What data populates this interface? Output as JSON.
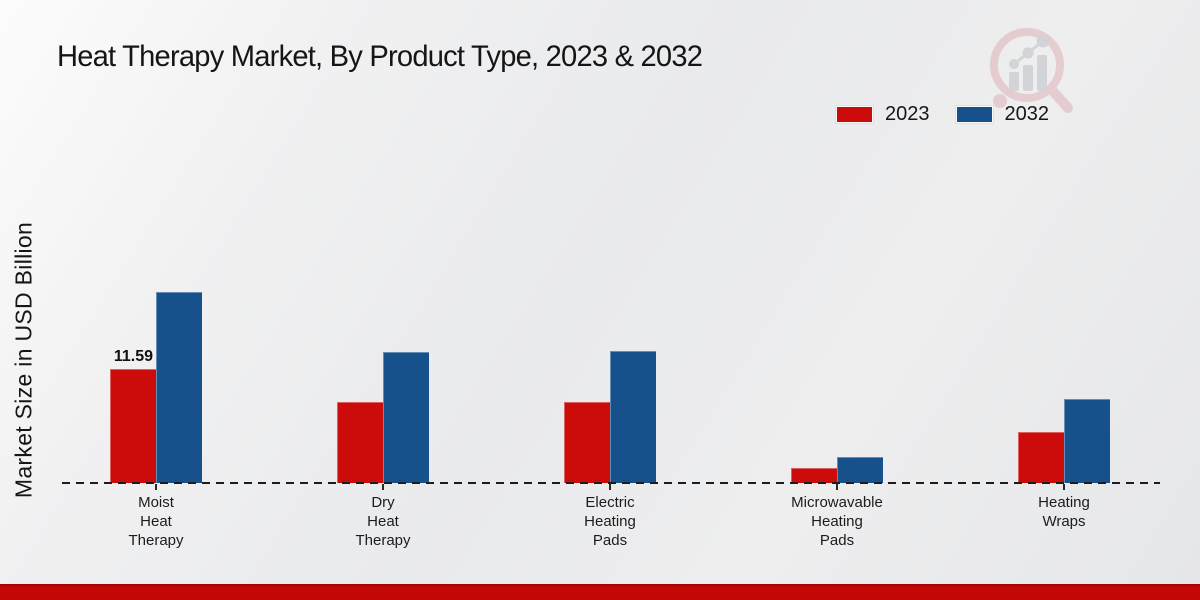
{
  "title": "Heat Therapy Market, By Product Type, 2023 & 2032",
  "y_axis_label": "Market Size in USD Billion",
  "legend": {
    "position": "top-right",
    "items": [
      {
        "label": "2023",
        "color": "#cc0b0b"
      },
      {
        "label": "2032",
        "color": "#16518c"
      }
    ]
  },
  "watermark": {
    "icon": "magnifier-bar-chart-logo",
    "lens_color": "#c5505e",
    "bars_color": "#a9abb2"
  },
  "footer": {
    "bar_color": "#c30707"
  },
  "chart_data": {
    "type": "bar",
    "title": "Heat Therapy Market, By Product Type, 2023 & 2032",
    "xlabel": "",
    "ylabel": "Market Size in USD Billion",
    "categories": [
      "Moist Heat Therapy",
      "Dry Heat Therapy",
      "Electric Heating Pads",
      "Microwavable Heating Pads",
      "Heating Wraps"
    ],
    "series": [
      {
        "name": "2023",
        "color": "#cc0b0b",
        "values": [
          11.59,
          8.3,
          8.3,
          1.5,
          5.2
        ]
      },
      {
        "name": "2032",
        "color": "#16518c",
        "values": [
          19.5,
          13.4,
          13.5,
          2.65,
          8.6
        ]
      }
    ],
    "value_label": {
      "series": "2023",
      "series_index": 0,
      "category": "Moist Heat Therapy",
      "category_index": 0,
      "text": "11.59"
    },
    "ylim": [
      0,
      20
    ],
    "grid": false,
    "y_ticks_visible": false,
    "baseline_style": "dashed",
    "legend_position": "top-right"
  }
}
